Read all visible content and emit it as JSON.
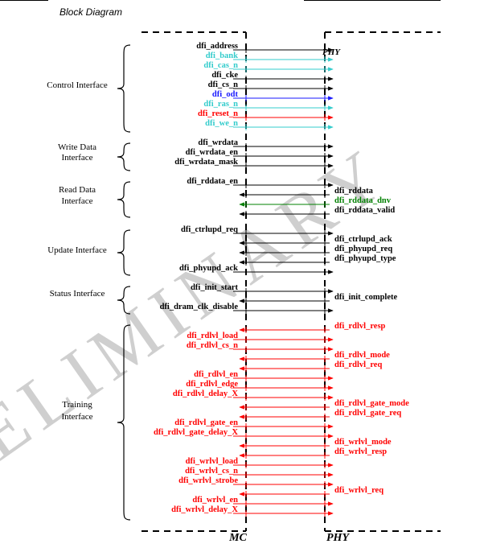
{
  "header": {
    "caption": "Block Diagram"
  },
  "watermark": {
    "text": "PRELIMINARY",
    "color": "#cfcfcf"
  },
  "blocks": {
    "mc": "MC",
    "phy": "PHY"
  },
  "colors": {
    "black": "#000000",
    "cyan": "#33cccc",
    "blue": "#1a1aff",
    "red": "#ff0000",
    "green": "#008000"
  },
  "groups": [
    {
      "id": "control",
      "label": [
        "Control Interface"
      ],
      "signals": [
        {
          "name": "dfi_address",
          "dir": "to_phy",
          "color": "black"
        },
        {
          "name": "dfi_bank",
          "dir": "to_phy",
          "color": "cyan"
        },
        {
          "name": "dfi_cas_n",
          "dir": "to_phy",
          "color": "cyan"
        },
        {
          "name": "dfi_cke",
          "dir": "to_phy",
          "color": "black"
        },
        {
          "name": "dfi_cs_n",
          "dir": "to_phy",
          "color": "black"
        },
        {
          "name": "dfi_odt",
          "dir": "to_phy",
          "color": "blue"
        },
        {
          "name": "dfi_ras_n",
          "dir": "to_phy",
          "color": "cyan"
        },
        {
          "name": "dfi_reset_n",
          "dir": "to_phy",
          "color": "red"
        },
        {
          "name": "dfi_we_n",
          "dir": "to_phy",
          "color": "cyan"
        }
      ]
    },
    {
      "id": "write-data",
      "label": [
        "Write Data",
        "Interface"
      ],
      "signals": [
        {
          "name": "dfi_wrdata",
          "dir": "to_phy",
          "color": "black"
        },
        {
          "name": "dfi_wrdata_en",
          "dir": "to_phy",
          "color": "black"
        },
        {
          "name": "dfi_wrdata_mask",
          "dir": "to_phy",
          "color": "black"
        }
      ]
    },
    {
      "id": "read-data",
      "label": [
        "Read Data",
        "Interface"
      ],
      "signals": [
        {
          "name": "dfi_rddata_en",
          "dir": "to_phy",
          "color": "black"
        },
        {
          "name": "dfi_rddata",
          "dir": "to_mc",
          "color": "black"
        },
        {
          "name": "dfi_rddata_dnv",
          "dir": "to_mc",
          "color": "green"
        },
        {
          "name": "dfi_rddata_valid",
          "dir": "to_mc",
          "color": "black"
        }
      ]
    },
    {
      "id": "update",
      "label": [
        "Update Interface"
      ],
      "signals": [
        {
          "name": "dfi_ctrlupd_req",
          "dir": "to_phy",
          "color": "black"
        },
        {
          "name": "dfi_ctrlupd_ack",
          "dir": "to_mc",
          "color": "black"
        },
        {
          "name": "dfi_phyupd_req",
          "dir": "to_mc",
          "color": "black"
        },
        {
          "name": "dfi_phyupd_type",
          "dir": "to_mc",
          "color": "black"
        },
        {
          "name": "dfi_phyupd_ack",
          "dir": "to_phy",
          "color": "black"
        }
      ]
    },
    {
      "id": "status",
      "label": [
        "Status Interface"
      ],
      "signals": [
        {
          "name": "dfi_init_start",
          "dir": "to_phy",
          "color": "black"
        },
        {
          "name": "dfi_init_complete",
          "dir": "to_mc",
          "color": "black"
        },
        {
          "name": "dfi_dram_clk_disable",
          "dir": "to_phy",
          "color": "black"
        }
      ]
    },
    {
      "id": "training",
      "label": [
        "Training",
        "Interface"
      ],
      "signals": [
        {
          "name": "dfi_rdlvl_resp",
          "dir": "to_mc",
          "color": "red"
        },
        {
          "name": "dfi_rdlvl_load",
          "dir": "to_phy",
          "color": "red"
        },
        {
          "name": "dfi_rdlvl_cs_n",
          "dir": "to_phy",
          "color": "red"
        },
        {
          "name": "dfi_rdlvl_mode",
          "dir": "to_mc",
          "color": "red"
        },
        {
          "name": "dfi_rdlvl_req",
          "dir": "to_mc",
          "color": "red"
        },
        {
          "name": "dfi_rdlvl_en",
          "dir": "to_phy",
          "color": "red"
        },
        {
          "name": "dfi_rdlvl_edge",
          "dir": "to_phy",
          "color": "red"
        },
        {
          "name": "dfi_rdlvl_delay_X",
          "dir": "to_phy",
          "color": "red"
        },
        {
          "name": "dfi_rdlvl_gate_mode",
          "dir": "to_mc",
          "color": "red"
        },
        {
          "name": "dfi_rdlvl_gate_req",
          "dir": "to_mc",
          "color": "red"
        },
        {
          "name": "dfi_rdlvl_gate_en",
          "dir": "to_phy",
          "color": "red"
        },
        {
          "name": "dfi_rdlvl_gate_delay_X",
          "dir": "to_phy",
          "color": "red"
        },
        {
          "name": "dfi_wrlvl_mode",
          "dir": "to_mc",
          "color": "red"
        },
        {
          "name": "dfi_wrlvl_resp",
          "dir": "to_mc",
          "color": "red"
        },
        {
          "name": "dfi_wrlvl_load",
          "dir": "to_phy",
          "color": "red"
        },
        {
          "name": "dfi_wrlvl_cs_n",
          "dir": "to_phy",
          "color": "red"
        },
        {
          "name": "dfi_wrlvl_strobe",
          "dir": "to_phy",
          "color": "red"
        },
        {
          "name": "dfi_wrlvl_req",
          "dir": "to_mc",
          "color": "red"
        },
        {
          "name": "dfi_wrlvl_en",
          "dir": "to_phy",
          "color": "red"
        },
        {
          "name": "dfi_wrlvl_delay_X",
          "dir": "to_phy",
          "color": "red"
        }
      ]
    }
  ]
}
